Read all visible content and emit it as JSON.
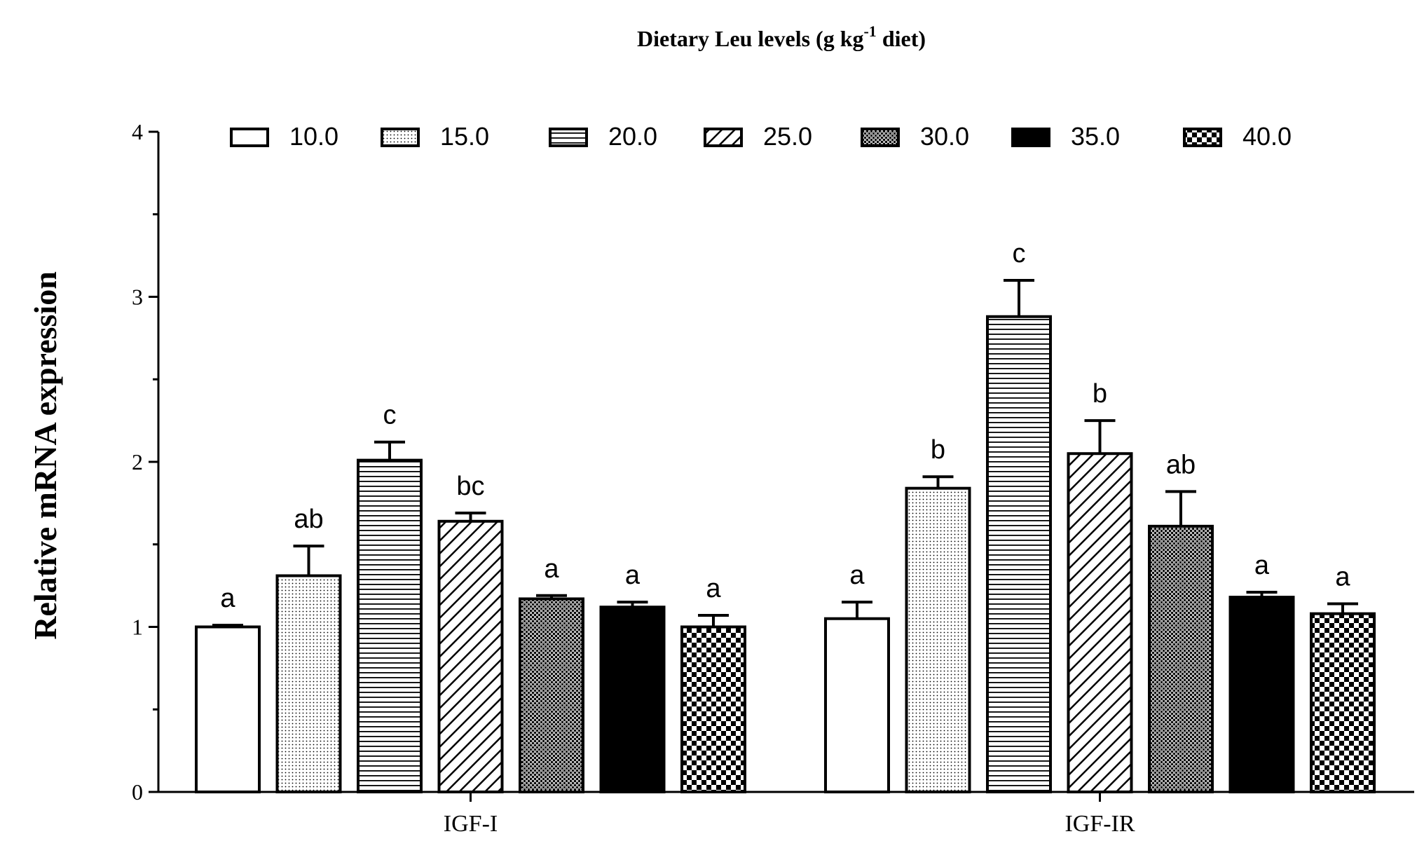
{
  "chart_data": {
    "type": "bar",
    "title": "Dietary Leu levels (g kg",
    "title_sup": "-1",
    "title_tail": " diet)",
    "ylabel": "Relative mRNA expression",
    "xlabel": "",
    "ylim": [
      0,
      4
    ],
    "yticks": [
      "0",
      "1",
      "2",
      "3",
      "4"
    ],
    "categories": [
      "IGF-I",
      "IGF-IR"
    ],
    "legend_position": "top",
    "grid": false,
    "series": [
      {
        "name": "10.0",
        "pattern": "white",
        "values": [
          1.0,
          1.05
        ],
        "errors": [
          0.01,
          0.1
        ],
        "labels": [
          "a",
          "a"
        ]
      },
      {
        "name": "15.0",
        "pattern": "dots",
        "values": [
          1.31,
          1.84
        ],
        "errors": [
          0.18,
          0.07
        ],
        "labels": [
          "ab",
          "b"
        ]
      },
      {
        "name": "20.0",
        "pattern": "hlines",
        "values": [
          2.01,
          2.88
        ],
        "errors": [
          0.11,
          0.22
        ],
        "labels": [
          "c",
          "c"
        ]
      },
      {
        "name": "25.0",
        "pattern": "diag",
        "values": [
          1.64,
          2.05
        ],
        "errors": [
          0.05,
          0.2
        ],
        "labels": [
          "bc",
          "b"
        ]
      },
      {
        "name": "30.0",
        "pattern": "crosshatch",
        "values": [
          1.17,
          1.61
        ],
        "errors": [
          0.02,
          0.21
        ],
        "labels": [
          "a",
          "ab"
        ]
      },
      {
        "name": "35.0",
        "pattern": "black",
        "values": [
          1.12,
          1.18
        ],
        "errors": [
          0.03,
          0.03
        ],
        "labels": [
          "a",
          "a"
        ]
      },
      {
        "name": "40.0",
        "pattern": "checker",
        "values": [
          1.0,
          1.08
        ],
        "errors": [
          0.07,
          0.06
        ],
        "labels": [
          "a",
          "a"
        ]
      }
    ]
  }
}
